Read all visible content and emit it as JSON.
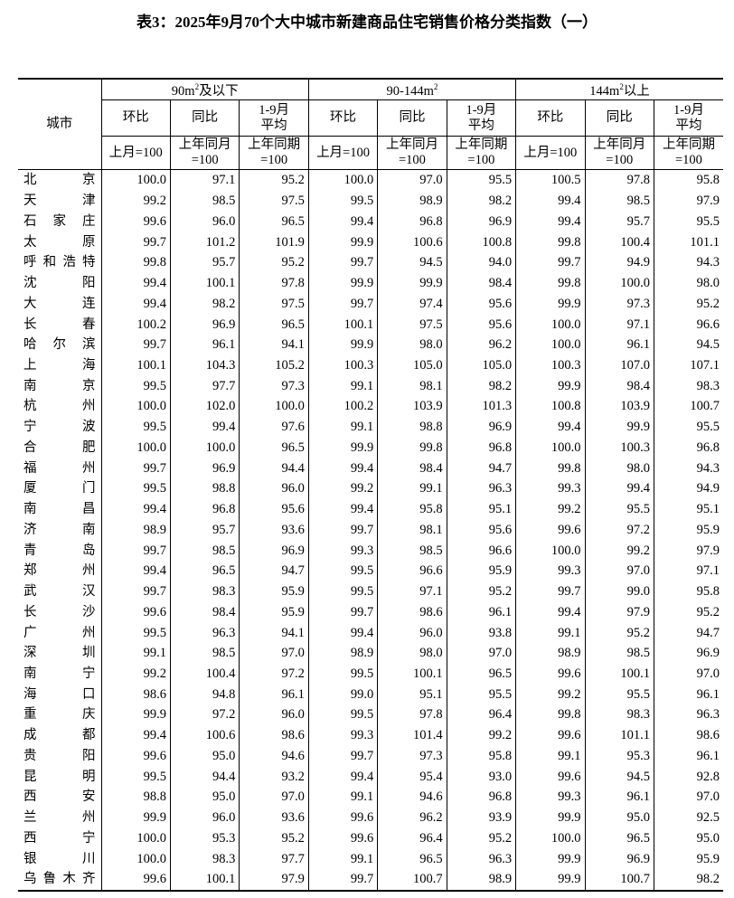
{
  "title": "表3：2025年9月70个大中城市新建商品住宅销售价格分类指数（一）",
  "header": {
    "city": "城市",
    "groups": [
      {
        "pre": "90m",
        "sup": "2",
        "post": "及以下"
      },
      {
        "pre": "90-144m",
        "sup": "2",
        "post": ""
      },
      {
        "pre": "144m",
        "sup": "2",
        "post": "以上"
      }
    ],
    "sub": [
      "环比",
      "同比",
      "1-9月平均"
    ],
    "sub_l1": [
      "环比",
      "同比",
      "1-9月"
    ],
    "sub_l2": [
      "",
      "",
      "平均"
    ],
    "base_l1": [
      "上月=100",
      "上年同月",
      "上年同期"
    ],
    "base_l2": [
      "",
      "=100",
      "=100"
    ]
  },
  "rows": [
    [
      "北　京",
      "100.0",
      "97.1",
      "95.2",
      "100.0",
      "97.0",
      "95.5",
      "100.5",
      "97.8",
      "95.8"
    ],
    [
      "天　津",
      "99.2",
      "98.5",
      "97.5",
      "99.5",
      "98.9",
      "98.2",
      "99.4",
      "98.5",
      "97.9"
    ],
    [
      "石家庄",
      "99.6",
      "96.0",
      "96.5",
      "99.4",
      "96.8",
      "96.9",
      "99.4",
      "95.7",
      "95.5"
    ],
    [
      "太　原",
      "99.7",
      "101.2",
      "101.9",
      "99.9",
      "100.6",
      "100.8",
      "99.8",
      "100.4",
      "101.1"
    ],
    [
      "呼和浩特",
      "99.8",
      "95.7",
      "95.2",
      "99.7",
      "94.5",
      "94.0",
      "99.7",
      "94.9",
      "94.3"
    ],
    [
      "沈　阳",
      "99.4",
      "100.1",
      "97.8",
      "99.9",
      "99.9",
      "98.4",
      "99.8",
      "100.0",
      "98.0"
    ],
    [
      "大　连",
      "99.4",
      "98.2",
      "97.5",
      "99.7",
      "97.4",
      "95.6",
      "99.9",
      "97.3",
      "95.2"
    ],
    [
      "长　春",
      "100.2",
      "96.9",
      "96.5",
      "100.1",
      "97.5",
      "95.6",
      "100.0",
      "97.1",
      "96.6"
    ],
    [
      "哈尔滨",
      "99.7",
      "96.1",
      "94.1",
      "99.9",
      "98.0",
      "96.2",
      "100.0",
      "96.1",
      "94.5"
    ],
    [
      "上　海",
      "100.1",
      "104.3",
      "105.2",
      "100.3",
      "105.0",
      "105.0",
      "100.3",
      "107.0",
      "107.1"
    ],
    [
      "南　京",
      "99.5",
      "97.7",
      "97.3",
      "99.1",
      "98.1",
      "98.2",
      "99.9",
      "98.4",
      "98.3"
    ],
    [
      "杭　州",
      "100.0",
      "102.0",
      "100.0",
      "100.2",
      "103.9",
      "101.3",
      "100.8",
      "103.9",
      "100.7"
    ],
    [
      "宁　波",
      "99.5",
      "99.4",
      "97.6",
      "99.1",
      "98.8",
      "96.9",
      "99.4",
      "99.9",
      "95.5"
    ],
    [
      "合　肥",
      "100.0",
      "100.0",
      "96.5",
      "99.9",
      "99.8",
      "96.8",
      "100.0",
      "100.3",
      "96.8"
    ],
    [
      "福　州",
      "99.7",
      "96.9",
      "94.4",
      "99.4",
      "98.4",
      "94.7",
      "99.8",
      "98.0",
      "94.3"
    ],
    [
      "厦　门",
      "99.5",
      "98.8",
      "96.0",
      "99.2",
      "99.1",
      "96.3",
      "99.3",
      "99.4",
      "94.9"
    ],
    [
      "南　昌",
      "99.4",
      "96.8",
      "95.6",
      "99.4",
      "95.8",
      "95.1",
      "99.2",
      "95.5",
      "95.1"
    ],
    [
      "济　南",
      "98.9",
      "95.7",
      "93.6",
      "99.7",
      "98.1",
      "95.6",
      "99.6",
      "97.2",
      "95.9"
    ],
    [
      "青　岛",
      "99.7",
      "98.5",
      "96.9",
      "99.3",
      "98.5",
      "96.6",
      "100.0",
      "99.2",
      "97.9"
    ],
    [
      "郑　州",
      "99.4",
      "96.5",
      "94.7",
      "99.5",
      "96.6",
      "95.9",
      "99.3",
      "97.0",
      "97.1"
    ],
    [
      "武　汉",
      "99.7",
      "98.3",
      "95.9",
      "99.5",
      "97.1",
      "95.2",
      "99.7",
      "99.0",
      "95.8"
    ],
    [
      "长　沙",
      "99.6",
      "98.4",
      "95.9",
      "99.7",
      "98.6",
      "96.1",
      "99.4",
      "97.9",
      "95.2"
    ],
    [
      "广　州",
      "99.5",
      "96.3",
      "94.1",
      "99.4",
      "96.0",
      "93.8",
      "99.1",
      "95.2",
      "94.7"
    ],
    [
      "深　圳",
      "99.1",
      "98.5",
      "97.0",
      "98.9",
      "98.0",
      "97.0",
      "98.9",
      "98.5",
      "96.9"
    ],
    [
      "南　宁",
      "99.2",
      "100.4",
      "97.2",
      "99.5",
      "100.1",
      "96.5",
      "99.6",
      "100.1",
      "97.0"
    ],
    [
      "海　口",
      "98.6",
      "94.8",
      "96.1",
      "99.0",
      "95.1",
      "95.5",
      "99.2",
      "95.5",
      "96.1"
    ],
    [
      "重　庆",
      "99.9",
      "97.2",
      "96.0",
      "99.5",
      "97.8",
      "96.4",
      "99.8",
      "98.3",
      "96.3"
    ],
    [
      "成　都",
      "99.4",
      "100.6",
      "98.6",
      "99.3",
      "101.4",
      "99.2",
      "99.6",
      "101.1",
      "98.6"
    ],
    [
      "贵　阳",
      "99.6",
      "95.0",
      "94.6",
      "99.7",
      "97.3",
      "95.8",
      "99.1",
      "95.3",
      "96.1"
    ],
    [
      "昆　明",
      "99.5",
      "94.4",
      "93.2",
      "99.4",
      "95.4",
      "93.0",
      "99.6",
      "94.5",
      "92.8"
    ],
    [
      "西　安",
      "98.8",
      "95.0",
      "97.0",
      "99.1",
      "94.6",
      "96.8",
      "99.3",
      "96.1",
      "97.0"
    ],
    [
      "兰　州",
      "99.9",
      "96.0",
      "93.6",
      "99.6",
      "96.2",
      "93.9",
      "99.9",
      "95.0",
      "92.5"
    ],
    [
      "西　宁",
      "100.0",
      "95.3",
      "95.2",
      "99.6",
      "96.4",
      "95.2",
      "100.0",
      "96.5",
      "95.0"
    ],
    [
      "银　川",
      "100.0",
      "98.3",
      "97.7",
      "99.1",
      "96.5",
      "96.3",
      "99.9",
      "96.9",
      "95.9"
    ],
    [
      "乌鲁木齐",
      "99.6",
      "100.1",
      "97.9",
      "99.7",
      "100.7",
      "98.9",
      "99.9",
      "100.7",
      "98.2"
    ]
  ]
}
